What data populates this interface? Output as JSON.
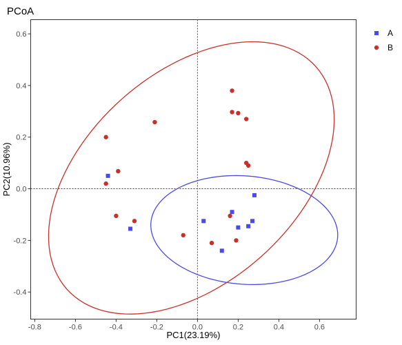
{
  "chart_data": {
    "type": "scatter",
    "title": "PCoA",
    "xlabel": "PC1(23.19%)",
    "ylabel": "PC2(10.96%)",
    "xlim": [
      -0.82,
      0.78
    ],
    "ylim": [
      -0.505,
      0.655
    ],
    "xticks": [
      -0.8,
      -0.6,
      -0.4,
      -0.2,
      0.0,
      0.2,
      0.4,
      0.6
    ],
    "xtick_labels": [
      "-0.8",
      "-0.6",
      "-0.4",
      "-0.2",
      "0.0",
      "0.2",
      "0.4",
      "0.6"
    ],
    "yticks": [
      -0.4,
      -0.2,
      0.0,
      0.2,
      0.4,
      0.6
    ],
    "ytick_labels": [
      "-0.4",
      "-0.2",
      "0.0",
      "0.2",
      "0.4",
      "0.6"
    ],
    "grid": false,
    "reference_lines": {
      "x": 0.0,
      "y": 0.0,
      "style": "dotted"
    },
    "legend_position": "top-right",
    "series": [
      {
        "name": "A",
        "marker": "square",
        "color": "#4a4ae8",
        "x": [
          -0.44,
          -0.33,
          0.03,
          0.17,
          0.2,
          0.25,
          0.27,
          0.28,
          0.12
        ],
        "y": [
          0.05,
          -0.155,
          -0.125,
          -0.09,
          -0.15,
          -0.145,
          -0.125,
          -0.025,
          -0.24
        ]
      },
      {
        "name": "B",
        "marker": "circle",
        "color": "#c8302a",
        "x": [
          -0.45,
          -0.39,
          -0.45,
          -0.4,
          -0.31,
          -0.21,
          -0.07,
          0.07,
          0.17,
          0.17,
          0.2,
          0.24,
          0.24,
          0.25,
          0.16,
          0.19
        ],
        "y": [
          0.2,
          0.068,
          0.02,
          -0.105,
          -0.125,
          0.258,
          -0.18,
          -0.21,
          0.38,
          0.297,
          0.293,
          0.27,
          0.1,
          0.09,
          -0.105,
          -0.2
        ]
      }
    ],
    "ellipses": [
      {
        "group": "A",
        "color": "#4a4ae8",
        "cx": 0.23,
        "cy": -0.16,
        "rx": 0.46,
        "ry": 0.21,
        "angle": -3
      },
      {
        "group": "B",
        "color": "#c8302a",
        "cx": -0.03,
        "cy": 0.042,
        "rx": 0.76,
        "ry": 0.44,
        "angle": 28
      }
    ]
  }
}
